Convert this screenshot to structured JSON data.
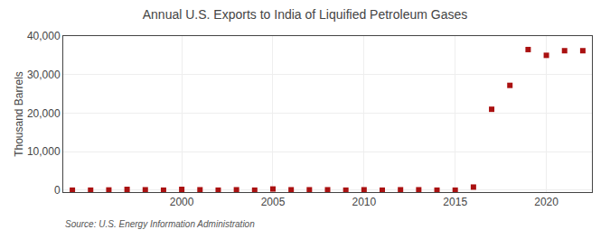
{
  "chart_data": {
    "type": "scatter",
    "title": "Annual U.S. Exports to India of Liquified Petroleum Gases",
    "ylabel": "Thousand Barrels",
    "annotations": [
      "Source: U.S. Energy Information Administration"
    ],
    "x": [
      1994,
      1995,
      1996,
      1997,
      1998,
      1999,
      2000,
      2001,
      2002,
      2003,
      2004,
      2005,
      2006,
      2007,
      2008,
      2009,
      2010,
      2011,
      2012,
      2013,
      2014,
      2015,
      2016,
      2017,
      2018,
      2019,
      2020,
      2021,
      2022
    ],
    "values": [
      0,
      0,
      50,
      200,
      100,
      0,
      200,
      100,
      0,
      100,
      0,
      300,
      100,
      100,
      100,
      0,
      100,
      0,
      100,
      100,
      0,
      0,
      800,
      21000,
      27200,
      36500,
      35000,
      36200,
      36200
    ],
    "color": "#aa1111",
    "marker": "square",
    "xlim": [
      1993.5,
      2022.5
    ],
    "xticks": [
      2000,
      2005,
      2010,
      2015,
      2020
    ],
    "ylim": [
      -500,
      40000
    ],
    "yticks": [
      0,
      {
        "value": 10000,
        "label": "10,000"
      },
      {
        "value": 20000,
        "label": "20,000"
      },
      {
        "value": 30000,
        "label": "30,000"
      },
      {
        "value": 40000,
        "label": "40,000"
      }
    ],
    "grid": true
  }
}
